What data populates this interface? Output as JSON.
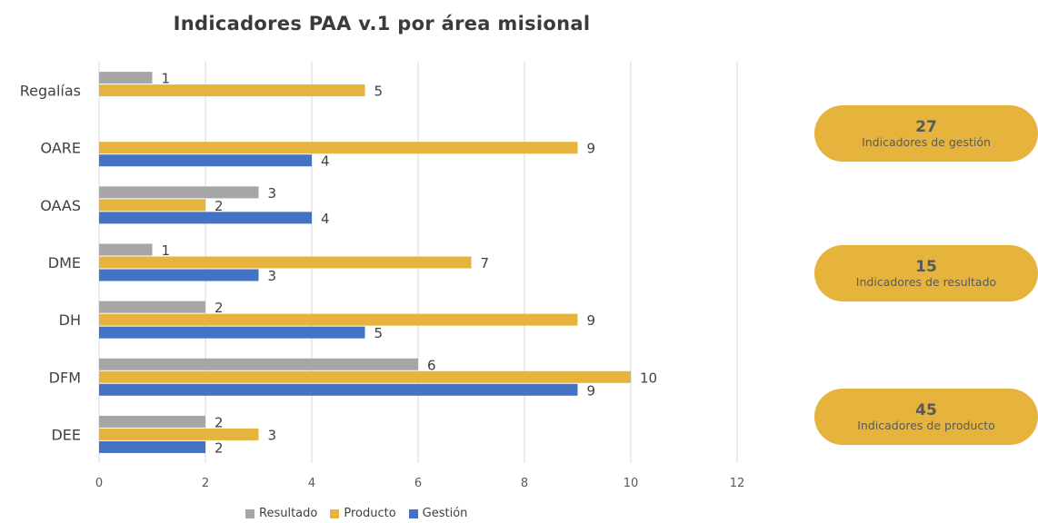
{
  "chart_data": {
    "type": "bar",
    "orientation": "horizontal",
    "title": "Indicadores PAA v.1 por área misional",
    "categories": [
      "Regalías",
      "OARE",
      "OAAS",
      "DME",
      "DH",
      "DFM",
      "DEE"
    ],
    "series": [
      {
        "name": "Resultado",
        "color": "#a6a6a6",
        "values": [
          1,
          null,
          3,
          1,
          2,
          6,
          2
        ]
      },
      {
        "name": "Producto",
        "color": "#e6b43c",
        "values": [
          5,
          9,
          2,
          7,
          9,
          10,
          3
        ]
      },
      {
        "name": "Gestión",
        "color": "#4472c4",
        "values": [
          null,
          4,
          4,
          3,
          5,
          9,
          2
        ]
      }
    ],
    "xlim": [
      0,
      12
    ],
    "xticks": [
      "0",
      "2",
      "4",
      "6",
      "8",
      "10",
      "12"
    ],
    "grid": true,
    "legend_position": "bottom"
  },
  "summary": [
    {
      "value": "27",
      "label": "Indicadores de gestión"
    },
    {
      "value": "15",
      "label": "Indicadores de resultado"
    },
    {
      "value": "45",
      "label": "Indicadores de producto"
    }
  ]
}
